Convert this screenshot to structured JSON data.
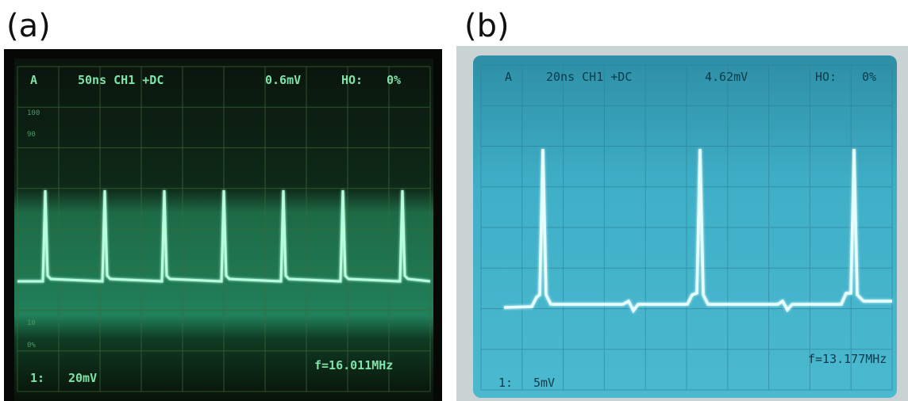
{
  "labels": {
    "a": "(a)",
    "b": "(b)"
  },
  "panels": [
    {
      "mode": "A",
      "timebase": "50ns CH1 +DC",
      "level": "0.6mV",
      "holdoff": "HO:",
      "holdoff_value": "0%",
      "scale_marks": [
        "100",
        "90",
        "10",
        "0%"
      ],
      "channel": "1:",
      "volts": "20mV",
      "frequency": "f=16.011MHz"
    },
    {
      "mode": "A",
      "timebase": "20ns CH1 +DC",
      "level": "4.62mV",
      "holdoff": "HO:",
      "holdoff_value": "0%",
      "channel": "1:",
      "volts": "5mV",
      "frequency": "f=13.177MHz"
    }
  ]
}
